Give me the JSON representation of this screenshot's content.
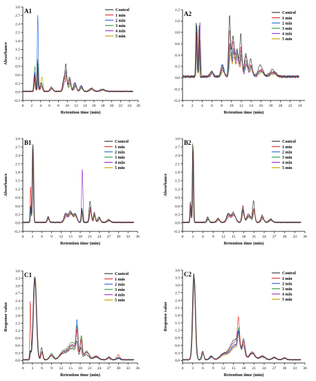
{
  "legend_entries": [
    "Control",
    "1 min",
    "2 min",
    "3 min",
    "4 min",
    "5 min"
  ],
  "series_colors": [
    "#3a3a3a",
    "#e03a3a",
    "#2f6fe0",
    "#30a050",
    "#a040d0",
    "#c8a000"
  ],
  "chart_data": [
    {
      "id": "A1",
      "type": "line",
      "panel_label": "A1",
      "ylabel": "Absorbance",
      "xlabel": "Retention time (min)",
      "xlim": [
        0,
        26
      ],
      "ylim": [
        -0.3,
        3.0
      ],
      "xticks": [
        0,
        2,
        4,
        6,
        8,
        10,
        12,
        14,
        16,
        18,
        20,
        22,
        24,
        26
      ],
      "yticks": [
        -0.3,
        0.0,
        0.3,
        0.6,
        0.9,
        1.2,
        1.5,
        1.8,
        2.1,
        2.4,
        2.7,
        3.0
      ],
      "legend_position": "top-right",
      "baseline": 0.02,
      "peaks": [
        {
          "x": 2.7,
          "w": 0.15,
          "h": [
            0.6,
            0.5,
            0.7,
            0.9,
            0.6,
            0.5
          ]
        },
        {
          "x": 3.4,
          "w": 0.12,
          "h": [
            1.2,
            0.9,
            2.9,
            1.1,
            1.0,
            0.6
          ]
        },
        {
          "x": 4.2,
          "w": 0.25,
          "h": [
            0.3,
            0.2,
            0.3,
            0.2,
            0.2,
            0.5
          ]
        },
        {
          "x": 6.5,
          "w": 0.3,
          "h": [
            0.15,
            0.1,
            0.12,
            0.1,
            0.1,
            0.1
          ]
        },
        {
          "x": 9.3,
          "w": 0.25,
          "h": [
            0.4,
            0.35,
            0.5,
            0.4,
            0.3,
            0.3
          ]
        },
        {
          "x": 9.8,
          "w": 0.2,
          "h": [
            0.9,
            0.7,
            0.6,
            0.5,
            0.5,
            0.4
          ]
        },
        {
          "x": 10.6,
          "w": 0.25,
          "h": [
            0.5,
            0.4,
            0.45,
            0.3,
            0.3,
            0.25
          ]
        },
        {
          "x": 11.8,
          "w": 0.3,
          "h": [
            0.3,
            0.25,
            0.3,
            0.2,
            0.2,
            0.15
          ]
        },
        {
          "x": 13.2,
          "w": 0.3,
          "h": [
            0.2,
            0.15,
            0.2,
            0.15,
            0.12,
            0.1
          ]
        },
        {
          "x": 15.5,
          "w": 0.4,
          "h": [
            0.12,
            0.1,
            0.1,
            0.08,
            0.08,
            0.06
          ]
        },
        {
          "x": 18.0,
          "w": 0.5,
          "h": [
            0.08,
            0.05,
            0.06,
            0.05,
            0.05,
            0.04
          ]
        }
      ]
    },
    {
      "id": "A2",
      "type": "line",
      "panel_label": "A2",
      "ylabel": "",
      "xlabel": "Retention time (min)",
      "xlim": [
        0,
        25
      ],
      "ylim": [
        -0.4,
        1.2
      ],
      "xticks": [
        0,
        2,
        4,
        6,
        8,
        10,
        12,
        14,
        16,
        18,
        20,
        22,
        24
      ],
      "yticks": [
        -0.4,
        -0.2,
        0.0,
        0.2,
        0.4,
        0.6,
        0.8,
        1.0,
        1.2
      ],
      "legend_position": "top-right",
      "baseline": 0.02,
      "peaks": [
        {
          "x": 2.9,
          "w": 0.12,
          "h": [
            0.95,
            0.8,
            0.85,
            0.9,
            0.85,
            0.8
          ]
        },
        {
          "x": 3.5,
          "w": 0.12,
          "h": [
            0.9,
            0.8,
            0.7,
            0.75,
            1.1,
            0.7
          ]
        },
        {
          "x": 6.0,
          "w": 0.3,
          "h": [
            0.1,
            0.08,
            0.08,
            0.07,
            0.06,
            0.05
          ]
        },
        {
          "x": 8.2,
          "w": 0.3,
          "h": [
            0.2,
            0.15,
            0.2,
            0.15,
            0.12,
            0.1
          ]
        },
        {
          "x": 9.7,
          "w": 0.2,
          "h": [
            1.05,
            0.8,
            0.6,
            0.5,
            0.55,
            0.4
          ]
        },
        {
          "x": 10.4,
          "w": 0.25,
          "h": [
            0.7,
            0.6,
            0.5,
            0.45,
            0.4,
            0.35
          ]
        },
        {
          "x": 11.2,
          "w": 0.3,
          "h": [
            0.5,
            0.4,
            0.45,
            0.4,
            0.35,
            0.3
          ]
        },
        {
          "x": 12.0,
          "w": 0.2,
          "h": [
            0.75,
            0.5,
            0.45,
            0.4,
            0.35,
            0.3
          ]
        },
        {
          "x": 13.0,
          "w": 0.3,
          "h": [
            0.4,
            0.35,
            0.3,
            0.25,
            0.2,
            0.2
          ]
        },
        {
          "x": 14.0,
          "w": 0.3,
          "h": [
            0.3,
            0.2,
            0.2,
            0.18,
            0.15,
            0.12
          ]
        },
        {
          "x": 16.0,
          "w": 0.5,
          "h": [
            0.2,
            0.12,
            0.12,
            0.1,
            0.1,
            0.08
          ]
        },
        {
          "x": 18.5,
          "w": 0.6,
          "h": [
            0.12,
            0.08,
            0.08,
            0.07,
            0.06,
            0.05
          ]
        }
      ]
    },
    {
      "id": "B1",
      "type": "line",
      "panel_label": "B1",
      "ylabel": "Absorbance",
      "xlabel": "Retention time (min)",
      "xlim": [
        0,
        36
      ],
      "ylim": [
        -0.3,
        3.0
      ],
      "xticks": [
        0,
        3,
        6,
        9,
        12,
        15,
        18,
        21,
        24,
        27,
        30,
        33,
        36
      ],
      "yticks": [
        -0.3,
        0.0,
        0.3,
        0.6,
        0.9,
        1.2,
        1.5,
        1.8,
        2.1,
        2.4,
        2.7,
        3.0
      ],
      "legend_position": "top-right",
      "baseline": 0.02,
      "peaks": [
        {
          "x": 2.5,
          "w": 0.15,
          "h": [
            0.6,
            1.3,
            0.5,
            0.5,
            0.5,
            0.5
          ]
        },
        {
          "x": 3.2,
          "w": 0.18,
          "h": [
            2.85,
            2.7,
            2.6,
            2.5,
            2.6,
            2.8
          ]
        },
        {
          "x": 8.0,
          "w": 0.3,
          "h": [
            0.2,
            0.15,
            0.2,
            0.15,
            0.15,
            0.12
          ]
        },
        {
          "x": 13.5,
          "w": 0.5,
          "h": [
            0.3,
            0.25,
            0.3,
            0.25,
            0.2,
            0.2
          ]
        },
        {
          "x": 15.0,
          "w": 0.6,
          "h": [
            0.4,
            0.35,
            0.35,
            0.3,
            0.3,
            0.3
          ]
        },
        {
          "x": 16.5,
          "w": 0.5,
          "h": [
            0.3,
            0.25,
            0.3,
            0.25,
            0.25,
            0.2
          ]
        },
        {
          "x": 18.6,
          "w": 0.2,
          "h": [
            0.5,
            0.4,
            0.45,
            0.4,
            1.9,
            0.4
          ]
        },
        {
          "x": 21.2,
          "w": 0.3,
          "h": [
            0.75,
            0.5,
            0.55,
            0.5,
            0.45,
            0.4
          ]
        },
        {
          "x": 22.5,
          "w": 0.3,
          "h": [
            0.35,
            0.3,
            0.3,
            0.25,
            0.25,
            0.2
          ]
        },
        {
          "x": 24.0,
          "w": 0.4,
          "h": [
            0.2,
            0.15,
            0.15,
            0.12,
            0.12,
            0.1
          ]
        },
        {
          "x": 27.0,
          "w": 0.5,
          "h": [
            0.1,
            0.08,
            0.08,
            0.07,
            0.06,
            0.05
          ]
        }
      ]
    },
    {
      "id": "B2",
      "type": "line",
      "panel_label": "B2",
      "ylabel": "Absorbance",
      "xlabel": "Retention time (min)",
      "xlim": [
        0,
        36
      ],
      "ylim": [
        -0.3,
        3.0
      ],
      "xticks": [
        0,
        3,
        6,
        9,
        12,
        15,
        18,
        21,
        24,
        27,
        30,
        33,
        36
      ],
      "yticks": [
        -0.3,
        0.0,
        0.3,
        0.6,
        0.9,
        1.2,
        1.5,
        1.8,
        2.1,
        2.4,
        2.7,
        3.0
      ],
      "legend_position": "top-right",
      "baseline": 0.02,
      "peaks": [
        {
          "x": 2.4,
          "w": 0.15,
          "h": [
            0.75,
            0.6,
            0.6,
            0.6,
            0.6,
            0.6
          ]
        },
        {
          "x": 3.1,
          "w": 0.15,
          "h": [
            2.85,
            2.7,
            2.6,
            2.5,
            2.6,
            2.8
          ]
        },
        {
          "x": 7.5,
          "w": 0.3,
          "h": [
            0.2,
            0.15,
            0.15,
            0.12,
            0.12,
            0.1
          ]
        },
        {
          "x": 10.5,
          "w": 0.4,
          "h": [
            0.15,
            0.12,
            0.12,
            0.1,
            0.1,
            0.08
          ]
        },
        {
          "x": 13.5,
          "w": 0.5,
          "h": [
            0.3,
            0.25,
            0.3,
            0.25,
            0.2,
            0.2
          ]
        },
        {
          "x": 15.0,
          "w": 0.6,
          "h": [
            0.35,
            0.3,
            0.3,
            0.3,
            0.25,
            0.25
          ]
        },
        {
          "x": 17.8,
          "w": 0.3,
          "h": [
            0.45,
            0.6,
            0.55,
            0.5,
            0.45,
            0.4
          ]
        },
        {
          "x": 19.5,
          "w": 0.6,
          "h": [
            0.3,
            0.25,
            0.25,
            0.2,
            0.2,
            0.2
          ]
        },
        {
          "x": 21.0,
          "w": 0.3,
          "h": [
            0.75,
            0.5,
            0.45,
            0.4,
            0.4,
            0.35
          ]
        },
        {
          "x": 23.5,
          "w": 0.4,
          "h": [
            0.25,
            0.2,
            0.2,
            0.15,
            0.15,
            0.12
          ]
        },
        {
          "x": 26.0,
          "w": 0.5,
          "h": [
            0.12,
            0.1,
            0.1,
            0.08,
            0.08,
            0.06
          ]
        }
      ]
    },
    {
      "id": "C1",
      "type": "line",
      "panel_label": "C1",
      "ylabel": "Response value",
      "xlabel": "Retention time (min)",
      "xlim": [
        0,
        36
      ],
      "ylim": [
        -0.1,
        3.6
      ],
      "xticks": [
        0,
        3,
        6,
        9,
        12,
        15,
        18,
        21,
        24,
        27,
        30,
        33,
        36
      ],
      "yticks": [
        0.0,
        0.3,
        0.6,
        0.9,
        1.2,
        1.5,
        1.8,
        2.1,
        2.4,
        2.7,
        3.0,
        3.3,
        3.6
      ],
      "legend_position": "top-right",
      "baseline": 0.03,
      "peaks": [
        {
          "x": 2.4,
          "w": 0.15,
          "h": [
            0.3,
            2.3,
            0.3,
            0.3,
            0.3,
            0.3
          ]
        },
        {
          "x": 3.8,
          "w": 0.5,
          "h": [
            3.3,
            3.3,
            3.35,
            3.3,
            3.2,
            3.3
          ]
        },
        {
          "x": 6.0,
          "w": 0.3,
          "h": [
            0.5,
            0.3,
            0.3,
            0.35,
            0.3,
            0.35
          ]
        },
        {
          "x": 9.0,
          "w": 0.6,
          "h": [
            0.15,
            0.2,
            0.2,
            0.25,
            0.2,
            0.2
          ]
        },
        {
          "x": 12.5,
          "w": 1.0,
          "h": [
            0.2,
            0.25,
            0.25,
            0.3,
            0.25,
            0.25
          ]
        },
        {
          "x": 15.5,
          "w": 1.4,
          "h": [
            0.45,
            0.6,
            0.55,
            0.7,
            0.6,
            0.5
          ]
        },
        {
          "x": 17.0,
          "w": 0.3,
          "h": [
            0.5,
            0.9,
            1.3,
            1.0,
            0.9,
            1.1
          ]
        },
        {
          "x": 18.3,
          "w": 0.3,
          "h": [
            0.4,
            0.7,
            0.75,
            0.8,
            0.7,
            0.9
          ]
        },
        {
          "x": 20.0,
          "w": 0.8,
          "h": [
            0.2,
            0.3,
            0.3,
            0.35,
            0.3,
            0.3
          ]
        },
        {
          "x": 23.0,
          "w": 0.8,
          "h": [
            0.1,
            0.15,
            0.15,
            0.15,
            0.12,
            0.12
          ]
        },
        {
          "x": 27.0,
          "w": 0.5,
          "h": [
            0.06,
            0.1,
            0.1,
            0.12,
            0.1,
            0.1
          ]
        },
        {
          "x": 30.0,
          "w": 0.5,
          "h": [
            0.05,
            0.2,
            0.08,
            0.1,
            0.08,
            0.08
          ]
        }
      ]
    },
    {
      "id": "C2",
      "type": "line",
      "panel_label": "C2",
      "ylabel": "Response value",
      "xlabel": "Retention time (min)",
      "xlim": [
        0,
        36
      ],
      "ylim": [
        -0.1,
        3.6
      ],
      "xticks": [
        0,
        3,
        6,
        9,
        12,
        15,
        18,
        21,
        24,
        27,
        30,
        33,
        36
      ],
      "yticks": [
        0.0,
        0.3,
        0.6,
        0.9,
        1.2,
        1.5,
        1.8,
        2.1,
        2.4,
        2.7,
        3.0,
        3.3,
        3.6
      ],
      "legend_position": "top-right",
      "baseline": 0.03,
      "peaks": [
        {
          "x": 3.4,
          "w": 0.4,
          "h": [
            3.45,
            3.35,
            3.3,
            3.3,
            3.25,
            3.2
          ]
        },
        {
          "x": 6.0,
          "w": 0.3,
          "h": [
            0.35,
            0.3,
            0.3,
            0.25,
            0.25,
            0.25
          ]
        },
        {
          "x": 8.5,
          "w": 0.5,
          "h": [
            0.15,
            0.15,
            0.12,
            0.12,
            0.1,
            0.1
          ]
        },
        {
          "x": 12.0,
          "w": 1.0,
          "h": [
            0.2,
            0.2,
            0.2,
            0.2,
            0.18,
            0.15
          ]
        },
        {
          "x": 15.5,
          "w": 1.5,
          "h": [
            0.8,
            0.7,
            0.6,
            0.6,
            0.55,
            0.5
          ]
        },
        {
          "x": 16.5,
          "w": 0.3,
          "h": [
            0.5,
            1.15,
            0.7,
            0.8,
            0.7,
            0.9
          ]
        },
        {
          "x": 18.0,
          "w": 0.4,
          "h": [
            0.4,
            0.6,
            0.7,
            0.6,
            0.55,
            0.6
          ]
        },
        {
          "x": 20.5,
          "w": 0.8,
          "h": [
            0.25,
            0.3,
            0.3,
            0.3,
            0.25,
            0.25
          ]
        },
        {
          "x": 23.5,
          "w": 0.8,
          "h": [
            0.12,
            0.15,
            0.15,
            0.15,
            0.12,
            0.12
          ]
        },
        {
          "x": 27.0,
          "w": 0.6,
          "h": [
            0.08,
            0.1,
            0.1,
            0.1,
            0.08,
            0.08
          ]
        },
        {
          "x": 30.0,
          "w": 0.5,
          "h": [
            0.06,
            0.08,
            0.08,
            0.08,
            0.06,
            0.06
          ]
        }
      ]
    }
  ]
}
